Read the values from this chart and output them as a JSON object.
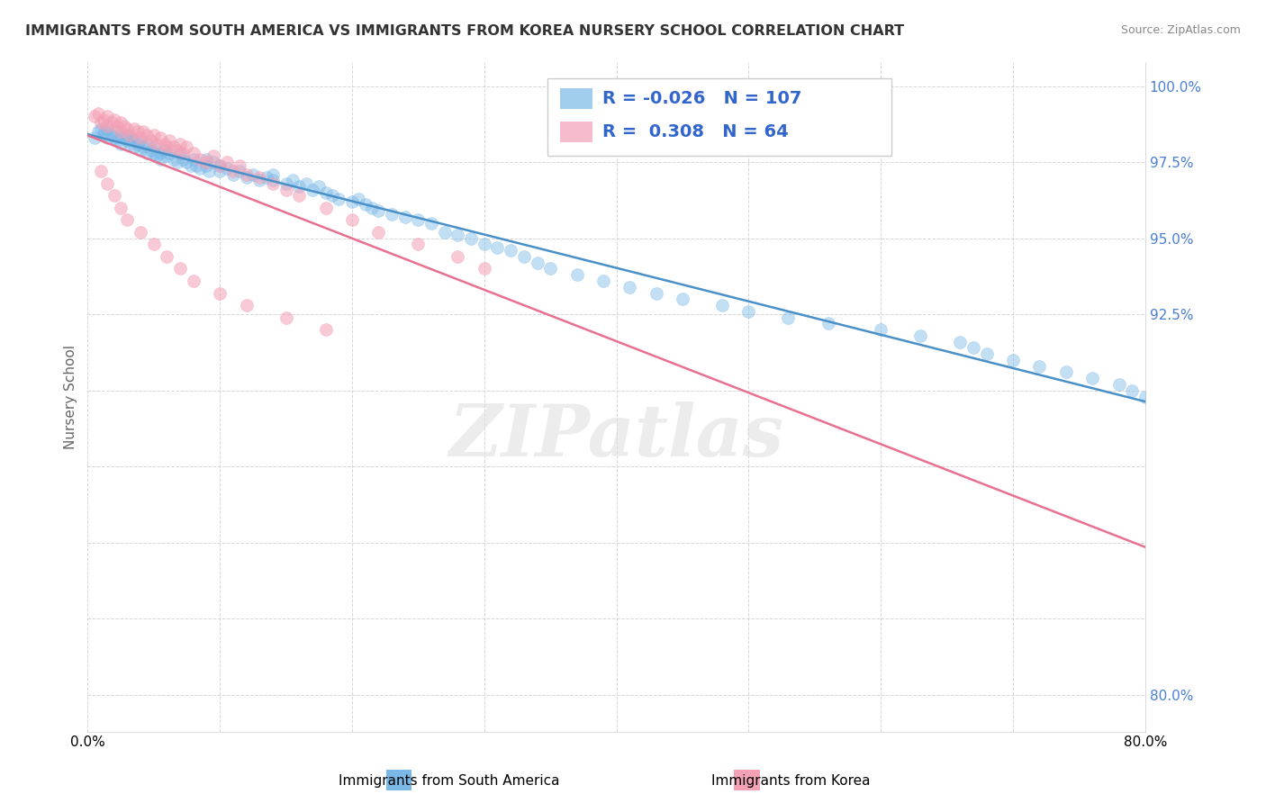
{
  "title": "IMMIGRANTS FROM SOUTH AMERICA VS IMMIGRANTS FROM KOREA NURSERY SCHOOL CORRELATION CHART",
  "source": "Source: ZipAtlas.com",
  "xlabel_south_america": "Immigrants from South America",
  "xlabel_korea": "Immigrants from Korea",
  "ylabel": "Nursery School",
  "r_south_america": -0.026,
  "n_south_america": 107,
  "r_korea": 0.308,
  "n_korea": 64,
  "color_south_america": "#7ab8e8",
  "color_korea": "#f4a0b5",
  "trendline_color_south_america": "#4a90c8",
  "trendline_color_korea": "#e87090",
  "legend_text_color": "#3366cc",
  "tick_color": "#4a7fd4",
  "xlim": [
    0.0,
    0.8
  ],
  "ylim": [
    0.788,
    1.008
  ],
  "ytick_vals": [
    0.8,
    0.825,
    0.85,
    0.875,
    0.9,
    0.925,
    0.95,
    0.975,
    1.0
  ],
  "ytick_labels": [
    "80.0%",
    "",
    "",
    "",
    "",
    "92.5%",
    "95.0%",
    "97.5%",
    "100.0%"
  ],
  "xtick_vals": [
    0.0,
    0.1,
    0.2,
    0.3,
    0.4,
    0.5,
    0.6,
    0.7,
    0.8
  ],
  "xtick_labels": [
    "0.0%",
    "",
    "",
    "",
    "",
    "",
    "",
    "",
    "80.0%"
  ],
  "watermark": "ZIPatlas",
  "sa_x": [
    0.005,
    0.008,
    0.01,
    0.012,
    0.013,
    0.015,
    0.015,
    0.018,
    0.02,
    0.02,
    0.022,
    0.025,
    0.025,
    0.028,
    0.03,
    0.03,
    0.032,
    0.033,
    0.035,
    0.035,
    0.038,
    0.04,
    0.04,
    0.042,
    0.045,
    0.045,
    0.048,
    0.05,
    0.05,
    0.052,
    0.055,
    0.055,
    0.058,
    0.06,
    0.062,
    0.065,
    0.068,
    0.07,
    0.072,
    0.075,
    0.078,
    0.08,
    0.082,
    0.085,
    0.09,
    0.09,
    0.092,
    0.095,
    0.1,
    0.1,
    0.105,
    0.11,
    0.115,
    0.12,
    0.125,
    0.13,
    0.135,
    0.14,
    0.14,
    0.15,
    0.155,
    0.16,
    0.165,
    0.17,
    0.175,
    0.18,
    0.185,
    0.19,
    0.2,
    0.205,
    0.21,
    0.215,
    0.22,
    0.23,
    0.24,
    0.25,
    0.26,
    0.27,
    0.28,
    0.29,
    0.3,
    0.31,
    0.32,
    0.33,
    0.34,
    0.35,
    0.37,
    0.39,
    0.41,
    0.43,
    0.45,
    0.48,
    0.5,
    0.53,
    0.56,
    0.6,
    0.63,
    0.66,
    0.67,
    0.68,
    0.7,
    0.72,
    0.74,
    0.76,
    0.78,
    0.79,
    0.8
  ],
  "sa_y": [
    0.983,
    0.985,
    0.986,
    0.984,
    0.985,
    0.983,
    0.986,
    0.984,
    0.983,
    0.985,
    0.982,
    0.984,
    0.981,
    0.983,
    0.982,
    0.984,
    0.981,
    0.983,
    0.98,
    0.982,
    0.981,
    0.979,
    0.982,
    0.98,
    0.978,
    0.981,
    0.979,
    0.978,
    0.98,
    0.977,
    0.978,
    0.976,
    0.979,
    0.977,
    0.978,
    0.976,
    0.975,
    0.978,
    0.976,
    0.975,
    0.974,
    0.976,
    0.974,
    0.973,
    0.976,
    0.974,
    0.972,
    0.975,
    0.974,
    0.972,
    0.973,
    0.971,
    0.972,
    0.97,
    0.971,
    0.969,
    0.97,
    0.971,
    0.969,
    0.968,
    0.969,
    0.967,
    0.968,
    0.966,
    0.967,
    0.965,
    0.964,
    0.963,
    0.962,
    0.963,
    0.961,
    0.96,
    0.959,
    0.958,
    0.957,
    0.956,
    0.955,
    0.952,
    0.951,
    0.95,
    0.948,
    0.947,
    0.946,
    0.944,
    0.942,
    0.94,
    0.938,
    0.936,
    0.934,
    0.932,
    0.93,
    0.928,
    0.926,
    0.924,
    0.922,
    0.92,
    0.918,
    0.916,
    0.914,
    0.912,
    0.91,
    0.908,
    0.906,
    0.904,
    0.902,
    0.9,
    0.898
  ],
  "ko_x": [
    0.005,
    0.008,
    0.01,
    0.012,
    0.015,
    0.015,
    0.018,
    0.02,
    0.022,
    0.025,
    0.025,
    0.028,
    0.03,
    0.032,
    0.035,
    0.038,
    0.04,
    0.042,
    0.045,
    0.048,
    0.05,
    0.052,
    0.055,
    0.058,
    0.06,
    0.062,
    0.065,
    0.068,
    0.07,
    0.072,
    0.075,
    0.08,
    0.085,
    0.09,
    0.095,
    0.1,
    0.105,
    0.11,
    0.115,
    0.12,
    0.13,
    0.14,
    0.15,
    0.16,
    0.18,
    0.2,
    0.22,
    0.25,
    0.28,
    0.3,
    0.01,
    0.015,
    0.02,
    0.025,
    0.03,
    0.04,
    0.05,
    0.06,
    0.07,
    0.08,
    0.1,
    0.12,
    0.15,
    0.18
  ],
  "ko_y": [
    0.99,
    0.991,
    0.988,
    0.989,
    0.99,
    0.987,
    0.988,
    0.989,
    0.987,
    0.988,
    0.985,
    0.987,
    0.986,
    0.984,
    0.986,
    0.985,
    0.983,
    0.985,
    0.984,
    0.982,
    0.984,
    0.981,
    0.983,
    0.981,
    0.98,
    0.982,
    0.98,
    0.979,
    0.981,
    0.978,
    0.98,
    0.978,
    0.976,
    0.975,
    0.977,
    0.974,
    0.975,
    0.972,
    0.974,
    0.971,
    0.97,
    0.968,
    0.966,
    0.964,
    0.96,
    0.956,
    0.952,
    0.948,
    0.944,
    0.94,
    0.972,
    0.968,
    0.964,
    0.96,
    0.956,
    0.952,
    0.948,
    0.944,
    0.94,
    0.936,
    0.932,
    0.928,
    0.924,
    0.92
  ]
}
